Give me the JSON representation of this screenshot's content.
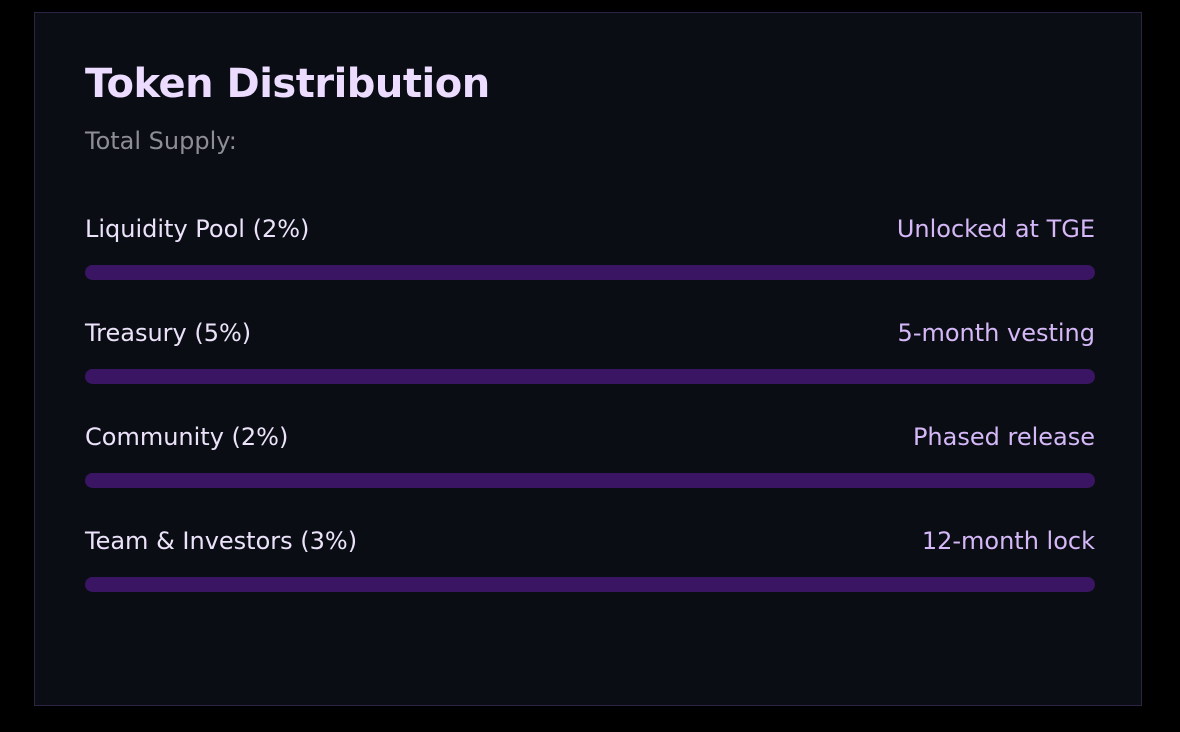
{
  "card": {
    "title": "Token Distribution",
    "subtitle": "Total Supply:",
    "allocations": [
      {
        "label": "Liquidity Pool (2%)",
        "status": "Unlocked at TGE"
      },
      {
        "label": "Treasury (5%)",
        "status": "5-month vesting"
      },
      {
        "label": "Community (2%)",
        "status": "Phased release"
      },
      {
        "label": "Team & Investors (3%)",
        "status": "12-month lock"
      }
    ]
  },
  "colors": {
    "background": "#000000",
    "card": "#0b0d14",
    "bar": "#3a1563",
    "title": "#ecdcff",
    "status": "#d5b8f7"
  }
}
